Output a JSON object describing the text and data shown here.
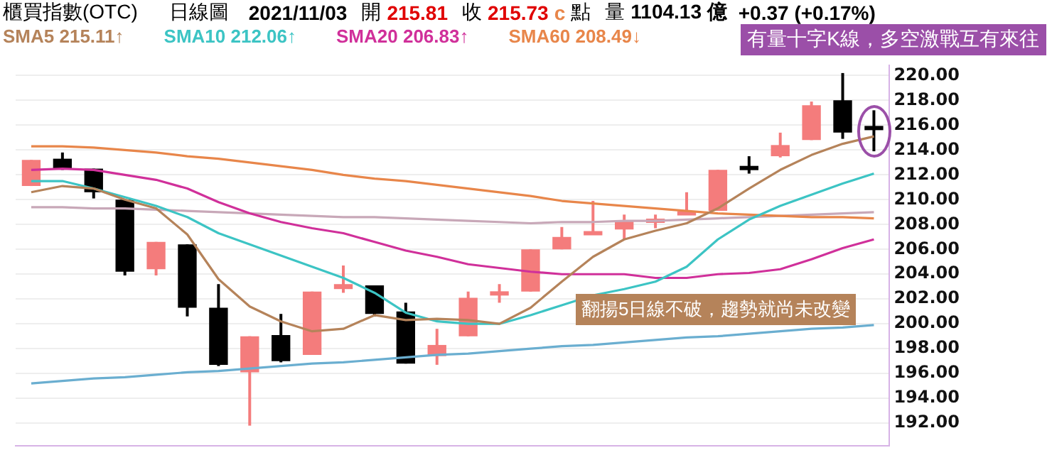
{
  "chart_data": {
    "type": "candlestick",
    "title": "櫃買指數(OTC)",
    "subtitle": "日線圖",
    "annotations": [
      "2021/11/03",
      "開",
      "215.81",
      "收",
      "215.73",
      "c",
      "點",
      "量",
      "1104.13 億",
      "+0.37 (+0.17%)",
      "有量十字K線，多空激戰互有來往",
      "翻揚5日線不破，趨勢就尚未改變"
    ],
    "categories": [
      null,
      null,
      null,
      null,
      null,
      null,
      null,
      null,
      null,
      null,
      null,
      null,
      null,
      null,
      null,
      null,
      null,
      null,
      null,
      null,
      null,
      null,
      null,
      null,
      null,
      null,
      null,
      null
    ],
    "ohlc": [
      [
        211.1,
        213.2,
        211.1,
        213.2
      ],
      [
        213.3,
        213.8,
        212.4,
        212.5
      ],
      [
        212.5,
        212.5,
        210.1,
        210.6
      ],
      [
        210,
        210,
        203.9,
        204.2
      ],
      [
        204.4,
        206.6,
        203.9,
        206.6
      ],
      [
        206.4,
        206.4,
        200.6,
        201.3
      ],
      [
        201.3,
        203.2,
        196.6,
        196.7
      ],
      [
        196.1,
        199,
        191.8,
        199
      ],
      [
        199.1,
        200.8,
        196.9,
        197
      ],
      [
        197.5,
        202.6,
        197.5,
        202.6
      ],
      [
        202.8,
        204.7,
        202.5,
        203.2
      ],
      [
        203.1,
        203.1,
        200.6,
        200.8
      ],
      [
        201,
        201.7,
        196.8,
        196.8
      ],
      [
        197.4,
        199.6,
        196.7,
        198.3
      ],
      [
        199,
        202.6,
        199,
        202.1
      ],
      [
        202.3,
        203.2,
        201.7,
        202.6
      ],
      [
        202.6,
        206,
        202.6,
        206
      ],
      [
        206,
        207.8,
        206,
        207
      ],
      [
        207.2,
        209.9,
        207.2,
        207.4
      ],
      [
        207.6,
        208.8,
        206.8,
        208.3
      ],
      [
        208.2,
        208.8,
        207.7,
        208.4
      ],
      [
        208.8,
        210.6,
        208.8,
        209
      ],
      [
        209.1,
        212.4,
        209.1,
        212.4
      ],
      [
        212.7,
        213.5,
        212.1,
        212.4
      ],
      [
        213.5,
        215.4,
        213.4,
        214.4
      ],
      [
        214.8,
        217.9,
        214.8,
        217.6
      ],
      [
        218,
        220.2,
        214.9,
        215.4
      ],
      [
        215.81,
        217.2,
        213.9,
        215.73
      ]
    ],
    "colors": [
      "#f47c7c",
      "#000000",
      "#000000",
      "#000000",
      "#f47c7c",
      "#000000",
      "#000000",
      "#f47c7c",
      "#000000",
      "#f47c7c",
      "#f47c7c",
      "#000000",
      "#000000",
      "#f47c7c",
      "#f47c7c",
      "#f47c7c",
      "#f47c7c",
      "#f47c7c",
      "#f47c7c",
      "#f47c7c",
      "#f47c7c",
      "#f47c7c",
      "#f47c7c",
      "#000000",
      "#f47c7c",
      "#f47c7c",
      "#000000",
      "#000000"
    ],
    "series": [
      {
        "type": "line",
        "name": "SMA5 215.11↑",
        "color": "#b5835a",
        "values": [
          210.6,
          211.1,
          210.9,
          210,
          209.3,
          207.2,
          203.6,
          201.4,
          200.2,
          199.4,
          199.6,
          200.7,
          200.3,
          200.4,
          200.3,
          200,
          201.3,
          203.4,
          205.4,
          206.8,
          207.5,
          208.1,
          209.3,
          210.9,
          212.4,
          213.6,
          214.5,
          215.1
        ]
      },
      {
        "type": "line",
        "name": "SMA10 212.06↑",
        "color": "#3cc4c4",
        "values": [
          211.5,
          211.5,
          210.9,
          210.2,
          209.5,
          208.6,
          207.3,
          206.4,
          205.5,
          204.6,
          203.7,
          202.5,
          200.9,
          200.2,
          200,
          200,
          200.7,
          201.5,
          202.3,
          202.8,
          203.4,
          204.6,
          206.8,
          208.4,
          209.5,
          210.4,
          211.3,
          212.1
        ]
      },
      {
        "type": "line",
        "name": "SMA20 206.83↑",
        "color": "#d0309a",
        "values": [
          212.4,
          212.5,
          212.4,
          212,
          211.6,
          210.9,
          209.8,
          208.9,
          208.2,
          207.7,
          207.3,
          206.6,
          205.9,
          205.4,
          204.8,
          204.5,
          204.2,
          204,
          204,
          204,
          203.7,
          203.7,
          204,
          204.1,
          204.4,
          205.2,
          206.1,
          206.8
        ]
      },
      {
        "type": "line",
        "name": "SMA60 208.49↓",
        "color": "#e8864a",
        "values": [
          214.3,
          214.3,
          214.2,
          214,
          213.8,
          213.5,
          213.3,
          213,
          212.7,
          212.4,
          212,
          211.7,
          211.5,
          211.2,
          210.9,
          210.6,
          210.3,
          209.9,
          209.7,
          209.5,
          209.3,
          209.1,
          208.9,
          208.8,
          208.7,
          208.6,
          208.6,
          208.5
        ]
      },
      {
        "type": "line",
        "color": "#c8a8b8",
        "values": [
          209.4,
          209.4,
          209.3,
          209.3,
          209.2,
          209.1,
          209,
          208.9,
          208.8,
          208.7,
          208.6,
          208.6,
          208.5,
          208.4,
          208.3,
          208.2,
          208.1,
          208.2,
          208.2,
          208.3,
          208.3,
          208.4,
          208.5,
          208.6,
          208.7,
          208.8,
          208.9,
          209
        ]
      },
      {
        "type": "line",
        "color": "#6aaed0",
        "values": [
          195.2,
          195.4,
          195.6,
          195.7,
          195.9,
          196.1,
          196.2,
          196.4,
          196.6,
          196.8,
          196.9,
          197.1,
          197.3,
          197.5,
          197.6,
          197.8,
          198,
          198.2,
          198.3,
          198.5,
          198.7,
          198.9,
          199,
          199.2,
          199.4,
          199.6,
          199.7,
          199.9
        ]
      }
    ],
    "ylim": [
      190.2,
      220.8
    ],
    "yticks": [
      {
        "value": 192,
        "label": "192.00"
      },
      {
        "value": 194,
        "label": "194.00"
      },
      {
        "value": 196,
        "label": "196.00"
      },
      {
        "value": 198,
        "label": "198.00"
      },
      {
        "value": 200,
        "label": "200.00"
      },
      {
        "value": 202,
        "label": "202.00"
      },
      {
        "value": 204,
        "label": "204.00"
      },
      {
        "value": 206,
        "label": "206.00"
      },
      {
        "value": 208,
        "label": "208.00"
      },
      {
        "value": 210,
        "label": "210.00"
      },
      {
        "value": 212,
        "label": "212.00"
      },
      {
        "value": 214,
        "label": "214.00"
      },
      {
        "value": 216,
        "label": "216.00"
      },
      {
        "value": 218,
        "label": "218.00"
      },
      {
        "value": 220,
        "label": "220.00"
      }
    ],
    "grid": "y",
    "legend": "top left",
    "tick_labels": "y",
    "marker": "none",
    "line_style": "solid"
  }
}
